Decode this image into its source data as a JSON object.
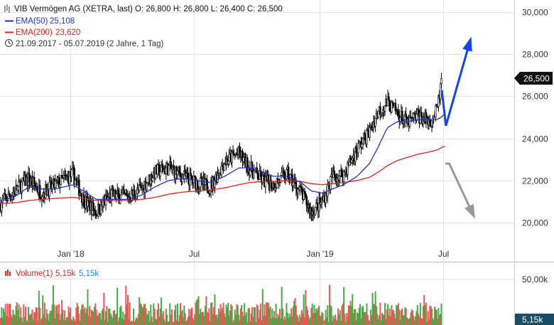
{
  "header": {
    "line1": "VIB Vermögen AG (XETRA, last)  O: 26,800  H: 26,800  L: 26,400  C: 26,500",
    "ema50_label": "EMA(50)",
    "ema50_value": "25,108",
    "ema200_label": "EMA(200)",
    "ema200_value": "23,620",
    "range_text": "21.09.2017 - 05.07.2019",
    "duration_text": "(2 Jahre, 1 Tag)"
  },
  "volume_header": {
    "label": "Volume(1)",
    "value_red": "5,15k",
    "value_blue": "5,15k"
  },
  "last_price_tag": "26,500",
  "volume_tag": "5,15k",
  "colors": {
    "candle": "#000000",
    "ema50": "#2233cc",
    "ema200": "#dd2222",
    "arrow_up": "#1144ee",
    "arrow_down": "#999999",
    "grid": "#e4e4e4",
    "vol_up": "#44aa44",
    "vol_down": "#ee5555",
    "tag_bg": "#111111"
  },
  "chart_data": {
    "type": "candlestick",
    "title": "VIB Vermögen AG (XETRA, last)",
    "x_tick_labels": [
      "Jan '18",
      "Jul",
      "Jan '19",
      "Jul"
    ],
    "y_tick_labels": [
      "30,000",
      "28,000",
      "26,000",
      "24,000",
      "22,000",
      "20,000"
    ],
    "ylim": [
      18.5,
      30.4
    ],
    "volume_tick_labels": [
      "50,00k"
    ],
    "series": [
      {
        "name": "EMA(50)",
        "last_value": 25.108
      },
      {
        "name": "EMA(200)",
        "last_value": 23.62
      }
    ],
    "price_path_dates": [
      "2017-09-21",
      "2017-10-15",
      "2017-11-01",
      "2017-11-20",
      "2017-12-10",
      "2018-01-05",
      "2018-01-20",
      "2018-02-08",
      "2018-03-01",
      "2018-03-25",
      "2018-04-15",
      "2018-05-05",
      "2018-05-25",
      "2018-06-15",
      "2018-07-05",
      "2018-07-25",
      "2018-08-15",
      "2018-09-05",
      "2018-09-20",
      "2018-10-10",
      "2018-10-25",
      "2018-11-15",
      "2018-12-05",
      "2018-12-20",
      "2019-01-05",
      "2019-01-20",
      "2019-02-05",
      "2019-02-25",
      "2019-03-15",
      "2019-03-28",
      "2019-04-10",
      "2019-04-25",
      "2019-05-10",
      "2019-05-25",
      "2019-06-10",
      "2019-06-22",
      "2019-06-28",
      "2019-07-01",
      "2019-07-05"
    ],
    "price_path_closes": [
      20.9,
      21.6,
      22.1,
      21.4,
      21.8,
      22.3,
      21.1,
      20.5,
      21.3,
      21.2,
      21.6,
      22.4,
      22.6,
      22.2,
      21.9,
      21.7,
      22.9,
      23.3,
      22.6,
      22.0,
      21.8,
      22.3,
      21.4,
      20.5,
      21.0,
      22.2,
      22.3,
      23.5,
      24.3,
      25.3,
      25.7,
      25.2,
      24.7,
      25.1,
      24.8,
      25.3,
      26.6,
      27.1,
      26.5
    ],
    "ema50_path": [
      21.0,
      21.3,
      21.7,
      21.6,
      21.6,
      21.8,
      21.5,
      21.1,
      21.1,
      21.1,
      21.3,
      21.7,
      22.0,
      22.1,
      22.0,
      21.9,
      22.2,
      22.6,
      22.6,
      22.4,
      22.2,
      22.2,
      21.9,
      21.5,
      21.4,
      21.6,
      21.8,
      22.2,
      22.8,
      23.6,
      24.5,
      24.8,
      24.8,
      24.9,
      24.9,
      24.9,
      25.0,
      25.1,
      25.108
    ],
    "ema200_path": [
      20.9,
      20.95,
      21.05,
      21.1,
      21.15,
      21.2,
      21.15,
      21.05,
      21.05,
      21.05,
      21.1,
      21.2,
      21.35,
      21.45,
      21.5,
      21.55,
      21.65,
      21.8,
      21.9,
      21.95,
      21.95,
      22.0,
      21.95,
      21.85,
      21.8,
      21.85,
      21.9,
      22.0,
      22.15,
      22.4,
      22.7,
      22.95,
      23.1,
      23.25,
      23.35,
      23.45,
      23.55,
      23.6,
      23.62
    ],
    "annotations": [
      {
        "type": "arrow-up",
        "from_date": "2019-07-05",
        "from_value": 24.6,
        "to_date": "2019-08-10",
        "to_value": 28.7
      },
      {
        "type": "arrow-down",
        "from_date": "2019-07-10",
        "from_value": 22.8,
        "to_date": "2019-08-15",
        "to_value": 20.3
      }
    ]
  }
}
